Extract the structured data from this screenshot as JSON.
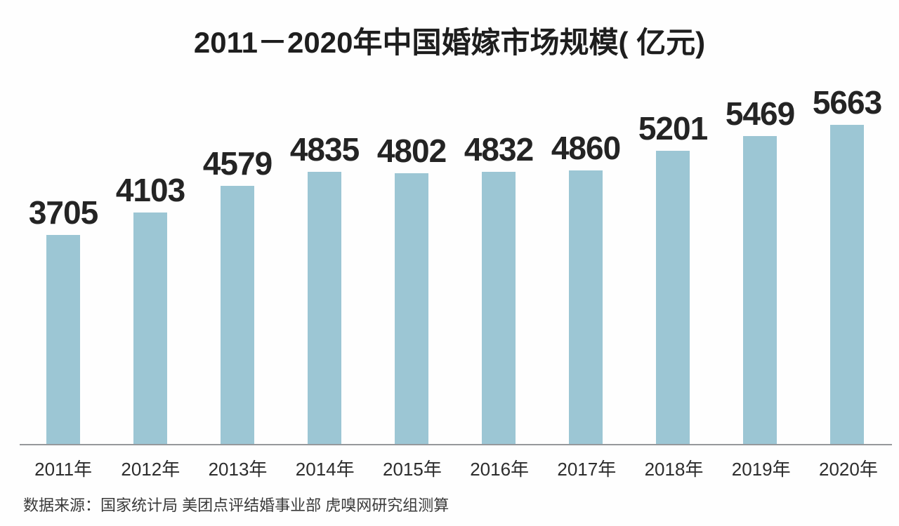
{
  "chart_data": {
    "type": "bar",
    "title": "2011－2020年中国婚嫁市场规模( 亿元)",
    "categories": [
      "2011年",
      "2012年",
      "2013年",
      "2014年",
      "2015年",
      "2016年",
      "2017年",
      "2018年",
      "2019年",
      "2020年"
    ],
    "values": [
      3705,
      4103,
      4579,
      4835,
      4802,
      4832,
      4860,
      5201,
      5469,
      5663
    ],
    "value_labels": [
      "3705",
      "4103",
      "4579",
      "4835",
      "4802",
      "4832",
      "4860",
      "5201",
      "5469",
      "5663"
    ],
    "xlabel": "",
    "ylabel": "亿元",
    "ylim": [
      0,
      5800
    ],
    "grid": false,
    "legend": false,
    "data_labels_position": "above-bars",
    "bar_color": "#9cc6d4",
    "axis_line_color": "#96989b",
    "title_color": "#1e1e1e",
    "label_color": "#242424",
    "source": "数据来源：国家统计局 美团点评结婚事业部 虎嗅网研究组测算"
  }
}
